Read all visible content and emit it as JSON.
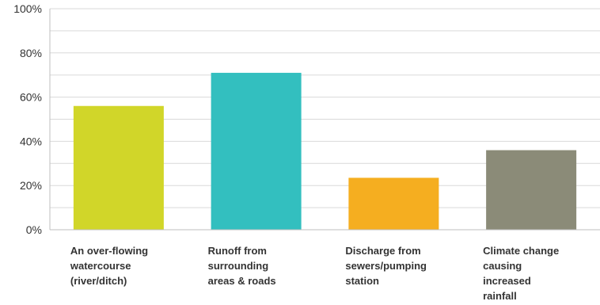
{
  "chart_data": {
    "type": "bar",
    "title": "",
    "xlabel": "",
    "ylabel": "",
    "ylim": [
      0,
      100
    ],
    "y_ticks": [
      "0%",
      "20%",
      "40%",
      "60%",
      "80%",
      "100%"
    ],
    "y_tick_values": [
      0,
      20,
      40,
      60,
      80,
      100
    ],
    "grid": true,
    "legend": "none",
    "categories": [
      "An over-flowing\nwatercourse\n(river/ditch)",
      "Runoff from\nsurrounding\nareas & roads",
      "Discharge from\nsewers/pumping\nstation",
      "Climate change\ncausing\nincreased\nrainfall"
    ],
    "values": [
      56,
      71,
      23.5,
      36
    ],
    "colors": [
      "#d1d629",
      "#33bfbf",
      "#f5ae20",
      "#8b8b78"
    ],
    "gridline_color": "#d9d9d9",
    "axis_color": "#bfbfbf"
  }
}
